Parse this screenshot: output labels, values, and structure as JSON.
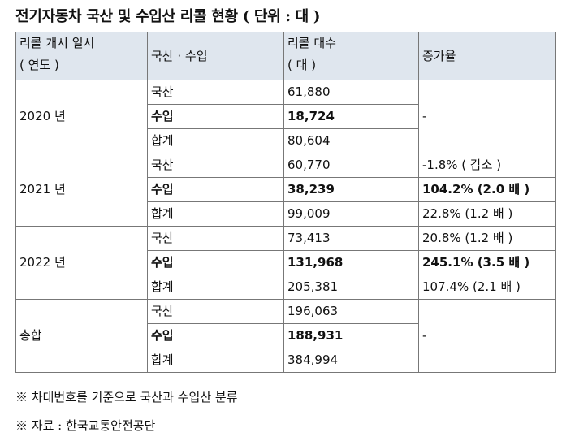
{
  "title": "전기자동차 국산 및 수입산 리콜 현황 ( 단위 : 대 )",
  "headers": {
    "date_line1": "리콜 개시 일시",
    "date_line2": "( 연도 )",
    "type": "국산 · 수입",
    "count_line1": "리콜 대수",
    "count_line2": "( 대 )",
    "rate": "증가율"
  },
  "groups": [
    {
      "year": "2020 년",
      "rows": [
        {
          "type": "국산",
          "count": "61,880",
          "rate": ""
        },
        {
          "type": "수입",
          "count": "18,724",
          "rate": ""
        },
        {
          "type": "합계",
          "count": "80,604",
          "rate": ""
        }
      ],
      "merged_rate": "-"
    },
    {
      "year": "2021 년",
      "rows": [
        {
          "type": "국산",
          "count": "60,770",
          "rate": "-1.8% ( 감소 )"
        },
        {
          "type": "수입",
          "count": "38,239",
          "rate": "104.2% (2.0 배 )"
        },
        {
          "type": "합계",
          "count": "99,009",
          "rate": "22.8% (1.2 배 )"
        }
      ]
    },
    {
      "year": "2022 년",
      "rows": [
        {
          "type": "국산",
          "count": "73,413",
          "rate": "20.8% (1.2 배 )"
        },
        {
          "type": "수입",
          "count": "131,968",
          "rate": "245.1% (3.5 배 )"
        },
        {
          "type": "합계",
          "count": "205,381",
          "rate": "107.4% (2.1 배 )"
        }
      ]
    },
    {
      "year": "총합",
      "rows": [
        {
          "type": "국산",
          "count": "196,063",
          "rate": ""
        },
        {
          "type": "수입",
          "count": "188,931",
          "rate": ""
        },
        {
          "type": "합계",
          "count": "384,994",
          "rate": ""
        }
      ],
      "merged_rate": "-"
    }
  ],
  "notes": [
    "※ 차대번호를 기준으로 국산과 수입산 분류",
    "※ 자료 : 한국교통안전공단"
  ]
}
